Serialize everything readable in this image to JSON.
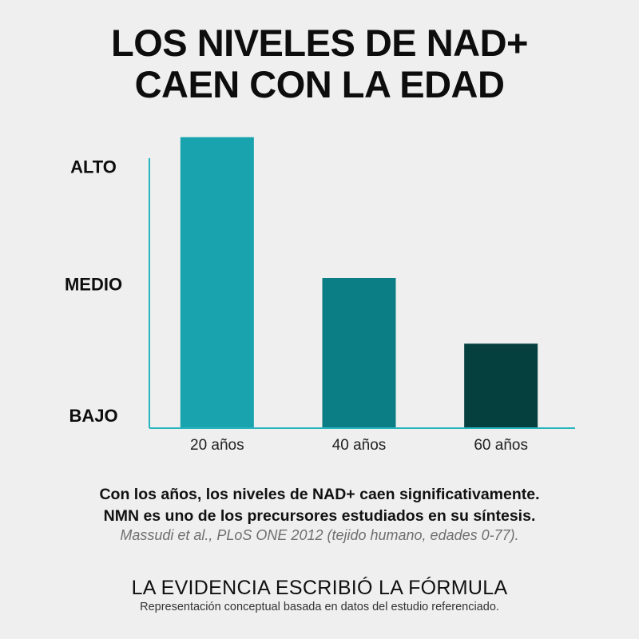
{
  "title_lines": [
    "LOS NIVELES DE NAD+",
    "CAEN CON LA EDAD"
  ],
  "chart_data": {
    "type": "bar",
    "categories": [
      "20 años",
      "40 años",
      "60 años"
    ],
    "values": [
      3.1,
      1.6,
      0.9
    ],
    "y_tick_labels": [
      {
        "label": "BAJO",
        "value": 0
      },
      {
        "label": "MEDIO",
        "value": 1.4
      },
      {
        "label": "ALTO",
        "value": 2.65
      }
    ],
    "ylim": [
      0,
      3.2
    ],
    "bar_colors": [
      "#19a3ae",
      "#0b7d85",
      "#053f3e"
    ],
    "axis_color": "#29b5bf",
    "grid": false
  },
  "caption_lines": [
    "Con los años, los niveles de NAD+ caen significativamente.",
    "NMN es uno de los precursores estudiados en su síntesis."
  ],
  "citation": "Massudi et al., PLoS ONE 2012 (tejido humano, edades 0-77).",
  "tagline": "LA EVIDENCIA ESCRIBIÓ LA FÓRMULA",
  "note": "Representación conceptual basada en datos del estudio referenciado."
}
